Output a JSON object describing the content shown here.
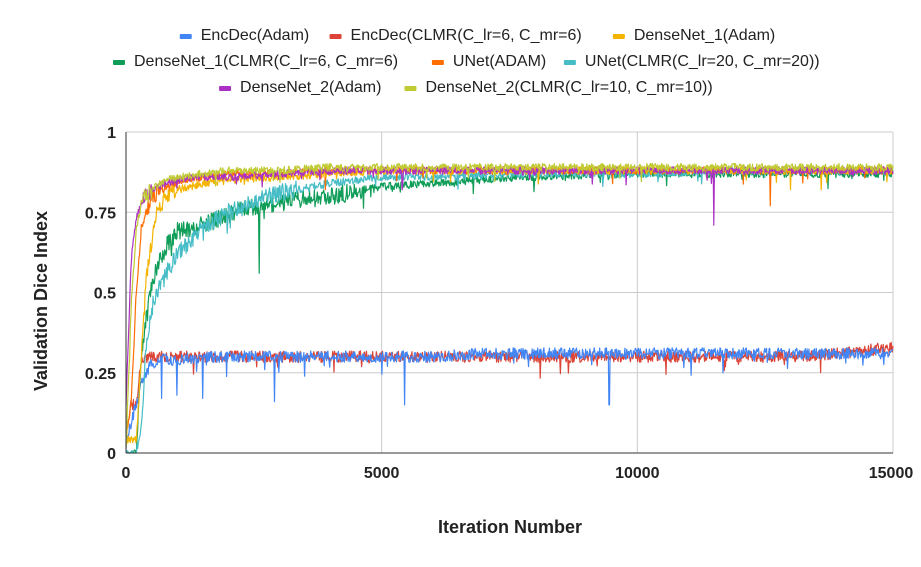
{
  "chart_data": {
    "type": "line",
    "title": "",
    "xlabel": "Iteration Number",
    "ylabel": "Validation Dice Index",
    "xlim": [
      0,
      15000
    ],
    "ylim": [
      0,
      1
    ],
    "x_ticks": [
      0,
      5000,
      10000,
      15000
    ],
    "x_tick_labels": [
      "0",
      "5000",
      "10000",
      "15000"
    ],
    "y_ticks": [
      0,
      0.25,
      0.5,
      0.75,
      1
    ],
    "y_tick_labels": [
      "0",
      "0.25",
      "0.5",
      "0.75",
      "1"
    ],
    "grid": true,
    "legend_position": "top",
    "series": [
      {
        "name": "EncDec(Adam)",
        "color": "#4285f4",
        "x": [
          0,
          150,
          300,
          500,
          700,
          1000,
          1500,
          2000,
          3000,
          4000,
          5000,
          6000,
          7000,
          8000,
          9000,
          10000,
          11000,
          12000,
          13000,
          14000,
          15000
        ],
        "values": [
          0.03,
          0.12,
          0.22,
          0.28,
          0.29,
          0.29,
          0.3,
          0.3,
          0.3,
          0.3,
          0.3,
          0.3,
          0.31,
          0.31,
          0.31,
          0.31,
          0.31,
          0.31,
          0.31,
          0.31,
          0.31
        ],
        "dips": [
          [
            700,
            0.17
          ],
          [
            1000,
            0.18
          ],
          [
            1500,
            0.17
          ],
          [
            2900,
            0.16
          ],
          [
            5450,
            0.15
          ],
          [
            9450,
            0.15
          ]
        ]
      },
      {
        "name": "EncDec(CLMR(C_lr=6, C_mr=6)",
        "color": "#db4437",
        "x": [
          0,
          100,
          200,
          300,
          500,
          1000,
          2000,
          3000,
          4000,
          5000,
          6000,
          7000,
          8000,
          9000,
          10000,
          11000,
          12000,
          13000,
          14000,
          15000
        ],
        "values": [
          0.05,
          0.15,
          0.15,
          0.29,
          0.3,
          0.3,
          0.3,
          0.3,
          0.3,
          0.3,
          0.3,
          0.3,
          0.3,
          0.3,
          0.3,
          0.3,
          0.3,
          0.3,
          0.31,
          0.33
        ],
        "dips": []
      },
      {
        "name": "DenseNet_1(Adam)",
        "color": "#f4b400",
        "x": [
          0,
          200,
          300,
          400,
          600,
          800,
          1000,
          1500,
          2000,
          3000,
          4000,
          5000,
          6000,
          8000,
          10000,
          12000,
          14000,
          15000
        ],
        "values": [
          0.04,
          0.04,
          0.3,
          0.55,
          0.75,
          0.8,
          0.82,
          0.84,
          0.85,
          0.86,
          0.87,
          0.88,
          0.88,
          0.88,
          0.88,
          0.88,
          0.88,
          0.88
        ],
        "dips": [
          [
            13000,
            0.82
          ],
          [
            13600,
            0.82
          ]
        ]
      },
      {
        "name": "DenseNet_1(CLMR(C_lr=6, C_mr=6)",
        "color": "#0f9d58",
        "x": [
          0,
          200,
          300,
          400,
          500,
          600,
          800,
          1000,
          1500,
          2000,
          2500,
          3000,
          3500,
          4000,
          5000,
          6000,
          7000,
          8000,
          10000,
          12000,
          14000,
          15000
        ],
        "values": [
          0.0,
          0.0,
          0.3,
          0.42,
          0.52,
          0.58,
          0.65,
          0.69,
          0.71,
          0.74,
          0.77,
          0.78,
          0.79,
          0.8,
          0.83,
          0.84,
          0.85,
          0.86,
          0.87,
          0.87,
          0.87,
          0.87
        ],
        "dips": [
          [
            2600,
            0.56
          ],
          [
            2700,
            0.73
          ]
        ]
      },
      {
        "name": "UNet(ADAM)",
        "color": "#ff6d00",
        "x": [
          0,
          100,
          200,
          300,
          400,
          500,
          700,
          1000,
          1500,
          2000,
          3000,
          4000,
          5000,
          7000,
          10000,
          12000,
          14000,
          15000
        ],
        "values": [
          0.05,
          0.15,
          0.5,
          0.7,
          0.76,
          0.79,
          0.82,
          0.84,
          0.86,
          0.87,
          0.87,
          0.88,
          0.88,
          0.88,
          0.88,
          0.88,
          0.88,
          0.88
        ],
        "dips": [
          [
            12600,
            0.77
          ],
          [
            3900,
            0.82
          ]
        ]
      },
      {
        "name": "UNet(CLMR(C_lr=20,  C_mr=20))",
        "color": "#46bdc6",
        "x": [
          0,
          200,
          300,
          400,
          500,
          700,
          1000,
          1500,
          2000,
          2500,
          3000,
          4000,
          5000,
          6000,
          8000,
          10000,
          12000,
          14000,
          15000
        ],
        "values": [
          0.0,
          0.0,
          0.08,
          0.35,
          0.45,
          0.53,
          0.62,
          0.7,
          0.75,
          0.78,
          0.81,
          0.84,
          0.86,
          0.86,
          0.87,
          0.87,
          0.88,
          0.88,
          0.88
        ],
        "dips": []
      },
      {
        "name": "DenseNet_2(Adam)",
        "color": "#ab30c4",
        "x": [
          0,
          100,
          200,
          300,
          500,
          800,
          1000,
          1500,
          2000,
          3000,
          4000,
          5000,
          7000,
          10000,
          12000,
          14000,
          15000
        ],
        "values": [
          0.15,
          0.6,
          0.73,
          0.78,
          0.82,
          0.84,
          0.85,
          0.86,
          0.86,
          0.87,
          0.88,
          0.88,
          0.88,
          0.88,
          0.88,
          0.88,
          0.88
        ],
        "dips": [
          [
            11500,
            0.71
          ],
          [
            5400,
            0.82
          ]
        ]
      },
      {
        "name": "DenseNet_2(CLMR(C_lr=10,  C_mr=10))",
        "color": "#c0ca33",
        "x": [
          0,
          100,
          200,
          300,
          500,
          800,
          1000,
          1500,
          2000,
          3000,
          4000,
          5000,
          7000,
          10000,
          12000,
          14000,
          15000
        ],
        "values": [
          0.02,
          0.45,
          0.7,
          0.78,
          0.82,
          0.85,
          0.86,
          0.87,
          0.88,
          0.88,
          0.89,
          0.89,
          0.89,
          0.89,
          0.89,
          0.89,
          0.89
        ],
        "dips": []
      }
    ]
  }
}
